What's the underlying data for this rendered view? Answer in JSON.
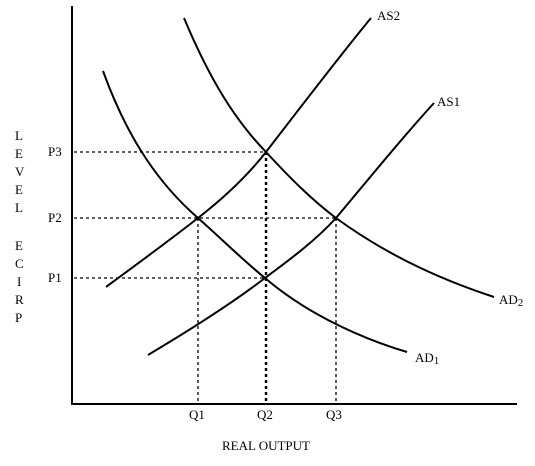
{
  "diagram": {
    "x_axis_label": "REAL OUTPUT",
    "y_axis_label_top": [
      "L",
      "E",
      "V",
      "E",
      "L"
    ],
    "y_axis_label_bottom": [
      "E",
      "C",
      "I",
      "R",
      "P"
    ],
    "price_labels": {
      "p1": "P1",
      "p2": "P2",
      "p3": "P3"
    },
    "quantity_labels": {
      "q1": "Q1",
      "q2": "Q2",
      "q3": "Q3"
    },
    "curves": {
      "as1": {
        "base": "AS",
        "sub": "1"
      },
      "as2": {
        "base": "AS",
        "sub": "2"
      },
      "ad1": {
        "base": "AD",
        "sub": "1"
      },
      "ad2": {
        "base": "AD",
        "sub": "2"
      }
    }
  }
}
